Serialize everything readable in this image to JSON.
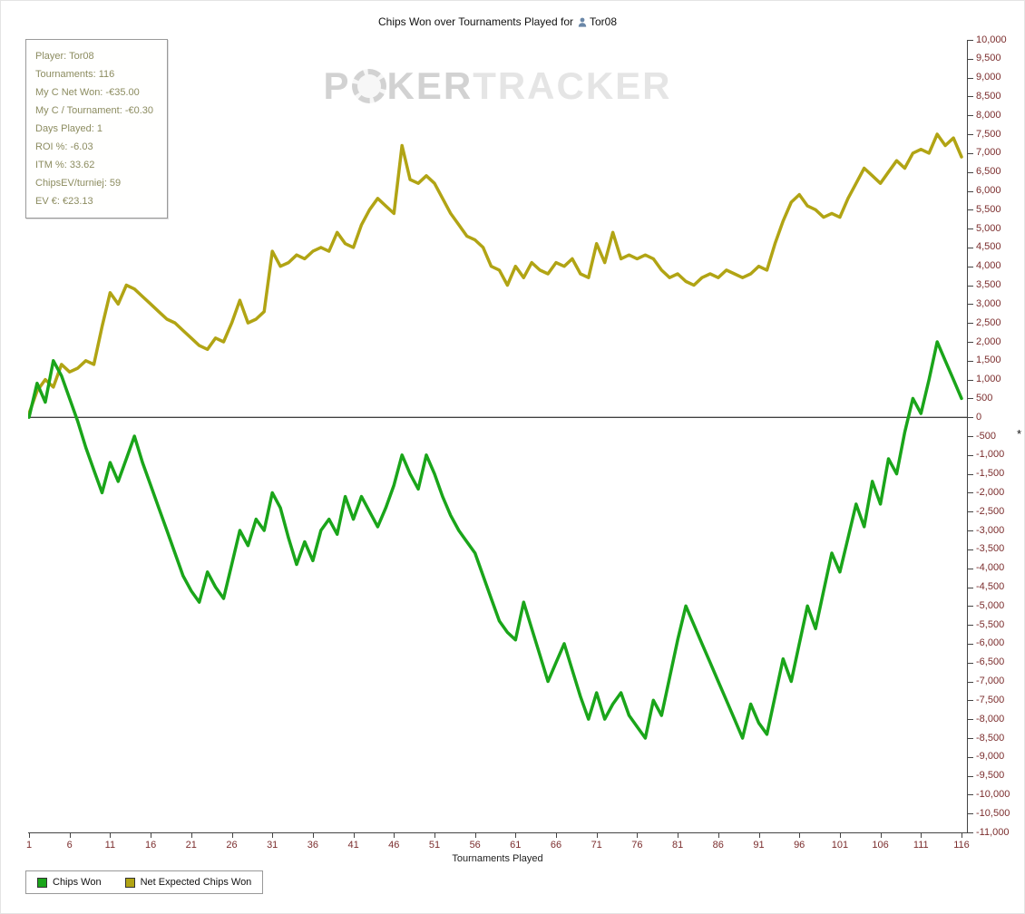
{
  "title": {
    "prefix": "Chips Won over Tournaments Played for",
    "player": "Tor08"
  },
  "watermark": {
    "p1": "P",
    "p2": "KER",
    "p3": "TRACKER"
  },
  "stats_box": {
    "lines": [
      "Player: Tor08",
      "Tournaments: 116",
      "My C Net Won: -€35.00",
      "My C / Tournament: -€0.30",
      "Days Played: 1",
      "ROI %: -6.03",
      "ITM %: 33.62",
      "ChipsEV/turniej: 59",
      "EV €: €23.13"
    ]
  },
  "axes": {
    "x_label": "Tournaments Played",
    "x_ticks": [
      1,
      6,
      11,
      16,
      21,
      26,
      31,
      36,
      41,
      46,
      51,
      56,
      61,
      66,
      71,
      76,
      81,
      86,
      91,
      96,
      101,
      106,
      111,
      116
    ],
    "y_min": -11000,
    "y_max": 10000,
    "y_step": 500
  },
  "annotation": "*",
  "chart_data": {
    "type": "line",
    "title": "Chips Won over Tournaments Played for Tor08",
    "xlabel": "Tournaments Played",
    "ylabel": "",
    "x_range": [
      1,
      116
    ],
    "ylim": [
      -11000,
      10000
    ],
    "grid": false,
    "legend_position": "bottom-left",
    "series": [
      {
        "name": "Chips Won",
        "color": "#1aa51a",
        "values": [
          0,
          900,
          400,
          1500,
          1100,
          500,
          -100,
          -800,
          -1400,
          -2000,
          -1200,
          -1700,
          -1100,
          -500,
          -1200,
          -1800,
          -2400,
          -3000,
          -3600,
          -4200,
          -4600,
          -4900,
          -4100,
          -4500,
          -4800,
          -3900,
          -3000,
          -3400,
          -2700,
          -3000,
          -2000,
          -2400,
          -3200,
          -3900,
          -3300,
          -3800,
          -3000,
          -2700,
          -3100,
          -2100,
          -2700,
          -2100,
          -2500,
          -2900,
          -2400,
          -1800,
          -1000,
          -1500,
          -1900,
          -1000,
          -1500,
          -2100,
          -2600,
          -3000,
          -3300,
          -3600,
          -4200,
          -4800,
          -5400,
          -5700,
          -5900,
          -4900,
          -5600,
          -6300,
          -7000,
          -6500,
          -6000,
          -6700,
          -7400,
          -8000,
          -7300,
          -8000,
          -7600,
          -7300,
          -7900,
          -8200,
          -8500,
          -7500,
          -7900,
          -6900,
          -5900,
          -5000,
          -5500,
          -6000,
          -6500,
          -7000,
          -7500,
          -8000,
          -8500,
          -7600,
          -8100,
          -8400,
          -7400,
          -6400,
          -7000,
          -6000,
          -5000,
          -5600,
          -4600,
          -3600,
          -4100,
          -3200,
          -2300,
          -2900,
          -1700,
          -2300,
          -1100,
          -1500,
          -400,
          500,
          100,
          1000,
          2000,
          1500,
          1000,
          500
        ]
      },
      {
        "name": "Net Expected Chips Won",
        "color": "#b1a414",
        "values": [
          100,
          700,
          1000,
          800,
          1400,
          1200,
          1300,
          1500,
          1400,
          2400,
          3300,
          3000,
          3500,
          3400,
          3200,
          3000,
          2800,
          2600,
          2500,
          2300,
          2100,
          1900,
          1800,
          2100,
          2000,
          2500,
          3100,
          2500,
          2600,
          2800,
          4400,
          4000,
          4100,
          4300,
          4200,
          4400,
          4500,
          4400,
          4900,
          4600,
          4500,
          5100,
          5500,
          5800,
          5600,
          5400,
          7200,
          6300,
          6200,
          6400,
          6200,
          5800,
          5400,
          5100,
          4800,
          4700,
          4500,
          4000,
          3900,
          3500,
          4000,
          3700,
          4100,
          3900,
          3800,
          4100,
          4000,
          4200,
          3800,
          3700,
          4600,
          4100,
          4900,
          4200,
          4300,
          4200,
          4300,
          4200,
          3900,
          3700,
          3800,
          3600,
          3500,
          3700,
          3800,
          3700,
          3900,
          3800,
          3700,
          3800,
          4000,
          3900,
          4600,
          5200,
          5700,
          5900,
          5600,
          5500,
          5300,
          5400,
          5300,
          5800,
          6200,
          6600,
          6400,
          6200,
          6500,
          6800,
          6600,
          7000,
          7100,
          7000,
          7500,
          7200,
          7400,
          6900
        ]
      }
    ]
  }
}
